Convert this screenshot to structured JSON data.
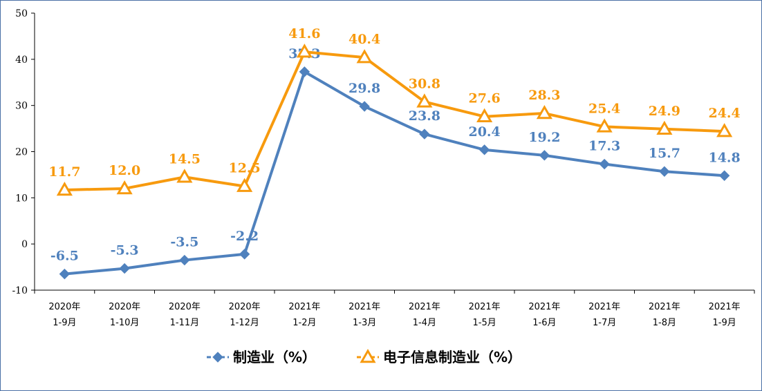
{
  "chart_data": {
    "type": "line",
    "categories": [
      [
        "2020年",
        "1-9月"
      ],
      [
        "2020年",
        "1-10月"
      ],
      [
        "2020年",
        "1-11月"
      ],
      [
        "2020年",
        "1-12月"
      ],
      [
        "2021年",
        "1-2月"
      ],
      [
        "2021年",
        "1-3月"
      ],
      [
        "2021年",
        "1-4月"
      ],
      [
        "2021年",
        "1-5月"
      ],
      [
        "2021年",
        "1-6月"
      ],
      [
        "2021年",
        "1-7月"
      ],
      [
        "2021年",
        "1-8月"
      ],
      [
        "2021年",
        "1-9月"
      ]
    ],
    "series": [
      {
        "name": "制造业（%）",
        "color": "#4f81bd",
        "marker": "diamond",
        "values": [
          -6.5,
          -5.3,
          -3.5,
          -2.2,
          37.3,
          29.8,
          23.8,
          20.4,
          19.2,
          17.3,
          15.7,
          14.8
        ],
        "labels": [
          "-6.5",
          "-5.3",
          "-3.5",
          "-2.2",
          "37.3",
          "29.8",
          "23.8",
          "20.4",
          "19.2",
          "17.3",
          "15.7",
          "14.8"
        ]
      },
      {
        "name": "电子信息制造业（%）",
        "color": "#f79a0e",
        "marker": "triangle",
        "values": [
          11.7,
          12.0,
          14.5,
          12.5,
          41.6,
          40.4,
          30.8,
          27.6,
          28.3,
          25.4,
          24.9,
          24.4
        ],
        "labels": [
          "11.7",
          "12.0",
          "14.5",
          "12.5",
          "41.6",
          "40.4",
          "30.8",
          "27.6",
          "28.3",
          "25.4",
          "24.9",
          "24.4"
        ]
      }
    ],
    "yticks": [
      "-10",
      "0",
      "10",
      "20",
      "30",
      "40",
      "50"
    ],
    "ylim": [
      -10,
      50
    ],
    "grid": false,
    "legend": "bottom"
  }
}
